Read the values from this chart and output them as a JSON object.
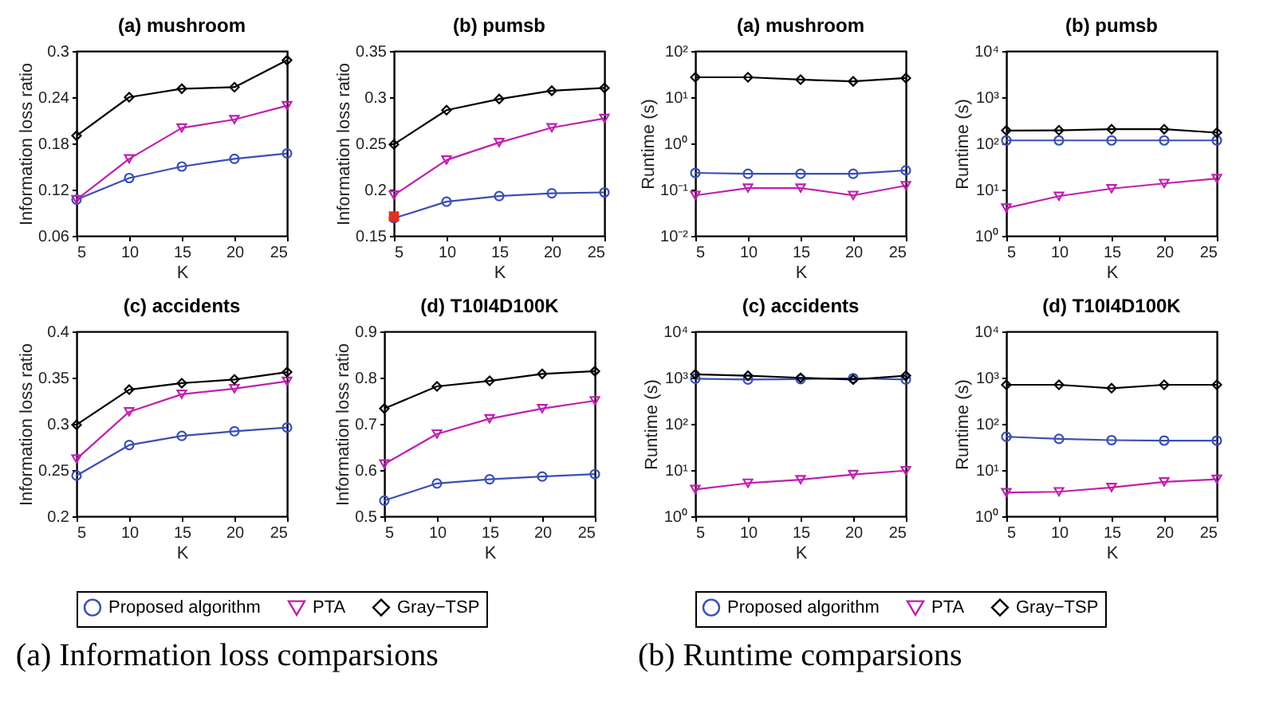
{
  "chart_data": [
    {
      "type": "line",
      "title": "(a) mushroom",
      "xlabel": "K",
      "ylabel": "Information loss ratio",
      "x": [
        5,
        10,
        15,
        20,
        25
      ],
      "xlim": [
        5,
        25
      ],
      "xticks": [
        5,
        10,
        15,
        20,
        25
      ],
      "ylim": [
        0.06,
        0.3
      ],
      "yticks": [
        0.06,
        0.12,
        0.18,
        0.24,
        0.3
      ],
      "legend": "bottom",
      "annotations": [
        "(a) Information loss comparsions"
      ],
      "series": [
        {
          "name": "Proposed algorithm",
          "color": "#3a4fb5",
          "marker": "circle",
          "values": [
            0.107,
            0.135,
            0.15,
            0.16,
            0.167
          ]
        },
        {
          "name": "PTA",
          "color": "#c020b0",
          "marker": "triangle",
          "values": [
            0.107,
            0.16,
            0.2,
            0.211,
            0.229
          ]
        },
        {
          "name": "Gray−TSP",
          "color": "#000000",
          "marker": "diamond",
          "values": [
            0.19,
            0.24,
            0.251,
            0.253,
            0.288
          ]
        }
      ]
    },
    {
      "type": "line",
      "title": "(b) pumsb",
      "xlabel": "K",
      "ylabel": "Information loss ratio",
      "x": [
        5,
        10,
        15,
        20,
        25
      ],
      "xlim": [
        5,
        25
      ],
      "xticks": [
        5,
        10,
        15,
        20,
        25
      ],
      "ylim": [
        0.15,
        0.35
      ],
      "yticks": [
        0.15,
        0.2,
        0.25,
        0.3,
        0.35
      ],
      "legend": "bottom",
      "series": [
        {
          "name": "Proposed algorithm",
          "color": "#3a4fb5",
          "marker": "circle",
          "values": [
            0.169,
            0.187,
            0.193,
            0.196,
            0.197
          ]
        },
        {
          "name": "PTA",
          "color": "#c020b0",
          "marker": "triangle",
          "values": [
            0.194,
            0.232,
            0.251,
            0.267,
            0.277
          ]
        },
        {
          "name": "Gray−TSP",
          "color": "#000000",
          "marker": "diamond",
          "values": [
            0.249,
            0.286,
            0.298,
            0.307,
            0.31
          ]
        },
        {
          "type": "scatter",
          "color": "#e03020",
          "marker": "square",
          "x": [
            5
          ],
          "values": [
            0.171
          ]
        }
      ]
    },
    {
      "type": "line",
      "title": "(c) accidents",
      "xlabel": "K",
      "ylabel": "Information loss ratio",
      "x": [
        5,
        10,
        15,
        20,
        25
      ],
      "xlim": [
        5,
        25
      ],
      "xticks": [
        5,
        10,
        15,
        20,
        25
      ],
      "ylim": [
        0.2,
        0.4
      ],
      "yticks": [
        0.2,
        0.25,
        0.3,
        0.35,
        0.4
      ],
      "legend": "bottom",
      "series": [
        {
          "name": "Proposed algorithm",
          "color": "#3a4fb5",
          "marker": "circle",
          "values": [
            0.244,
            0.277,
            0.287,
            0.292,
            0.296
          ]
        },
        {
          "name": "PTA",
          "color": "#c020b0",
          "marker": "triangle",
          "values": [
            0.262,
            0.313,
            0.332,
            0.338,
            0.346
          ]
        },
        {
          "name": "Gray−TSP",
          "color": "#000000",
          "marker": "diamond",
          "values": [
            0.299,
            0.337,
            0.344,
            0.348,
            0.356
          ]
        }
      ]
    },
    {
      "type": "line",
      "title": "(d) T10I4D100K",
      "xlabel": "K",
      "ylabel": "Information loss ratio",
      "x": [
        5,
        10,
        15,
        20,
        25
      ],
      "xlim": [
        5,
        25
      ],
      "xticks": [
        5,
        10,
        15,
        20,
        25
      ],
      "ylim": [
        0.5,
        0.9
      ],
      "yticks": [
        0.5,
        0.6,
        0.7,
        0.8,
        0.9
      ],
      "legend": "bottom",
      "series": [
        {
          "name": "Proposed algorithm",
          "color": "#3a4fb5",
          "marker": "circle",
          "values": [
            0.534,
            0.571,
            0.58,
            0.586,
            0.591
          ]
        },
        {
          "name": "PTA",
          "color": "#c020b0",
          "marker": "triangle",
          "values": [
            0.613,
            0.678,
            0.711,
            0.733,
            0.75
          ]
        },
        {
          "name": "Gray−TSP",
          "color": "#000000",
          "marker": "diamond",
          "values": [
            0.733,
            0.781,
            0.793,
            0.808,
            0.814
          ]
        }
      ]
    },
    {
      "type": "line",
      "title": "(a) mushroom",
      "xlabel": "K",
      "ylabel": "Runtime (s)",
      "log": "y",
      "x": [
        5,
        10,
        15,
        20,
        25
      ],
      "xlim": [
        5,
        25
      ],
      "xticks": [
        5,
        10,
        15,
        20,
        25
      ],
      "ylim": [
        0.01,
        100
      ],
      "yticks": [
        {
          "value": 0.01,
          "label": "10⁻²"
        },
        {
          "value": 0.1,
          "label": "10⁻¹"
        },
        {
          "value": 1,
          "label": "10⁰"
        },
        {
          "value": 10,
          "label": "10¹"
        },
        {
          "value": 100,
          "label": "10²"
        }
      ],
      "legend": "bottom",
      "annotations": [
        "(b) Runtime comparsions"
      ],
      "series": [
        {
          "name": "Proposed algorithm",
          "color": "#3a4fb5",
          "marker": "circle",
          "values": [
            0.23,
            0.22,
            0.22,
            0.22,
            0.26
          ]
        },
        {
          "name": "PTA",
          "color": "#c020b0",
          "marker": "triangle",
          "values": [
            0.075,
            0.108,
            0.108,
            0.075,
            0.122
          ]
        },
        {
          "name": "Gray−TSP",
          "color": "#000000",
          "marker": "diamond",
          "values": [
            27,
            27,
            24,
            22,
            26
          ]
        }
      ]
    },
    {
      "type": "line",
      "title": "(b) pumsb",
      "xlabel": "K",
      "ylabel": "Runtime (s)",
      "log": "y",
      "x": [
        5,
        10,
        15,
        20,
        25
      ],
      "xlim": [
        5,
        25
      ],
      "xticks": [
        5,
        10,
        15,
        20,
        25
      ],
      "ylim": [
        1,
        10000
      ],
      "yticks": [
        {
          "value": 1,
          "label": "10⁰"
        },
        {
          "value": 10,
          "label": "10¹"
        },
        {
          "value": 100,
          "label": "10²"
        },
        {
          "value": 1000,
          "label": "10³"
        },
        {
          "value": 10000,
          "label": "10⁴"
        }
      ],
      "legend": "bottom",
      "series": [
        {
          "name": "Proposed algorithm",
          "color": "#3a4fb5",
          "marker": "circle",
          "values": [
            116,
            116,
            116,
            116,
            116
          ]
        },
        {
          "name": "PTA",
          "color": "#c020b0",
          "marker": "triangle",
          "values": [
            4,
            7.2,
            10.5,
            13.6,
            17.3
          ]
        },
        {
          "name": "Gray−TSP",
          "color": "#000000",
          "marker": "diamond",
          "values": [
            190,
            192,
            203,
            203,
            171
          ]
        }
      ]
    },
    {
      "type": "line",
      "title": "(c) accidents",
      "xlabel": "K",
      "ylabel": "Runtime (s)",
      "log": "y",
      "x": [
        5,
        10,
        15,
        20,
        25
      ],
      "xlim": [
        5,
        25
      ],
      "xticks": [
        5,
        10,
        15,
        20,
        25
      ],
      "ylim": [
        1,
        10000
      ],
      "yticks": [
        {
          "value": 1,
          "label": "10⁰"
        },
        {
          "value": 10,
          "label": "10¹"
        },
        {
          "value": 100,
          "label": "10²"
        },
        {
          "value": 1000,
          "label": "10³"
        },
        {
          "value": 10000,
          "label": "10⁴"
        }
      ],
      "legend": "bottom",
      "series": [
        {
          "name": "Proposed algorithm",
          "color": "#3a4fb5",
          "marker": "circle",
          "values": [
            950,
            910,
            930,
            970,
            910
          ]
        },
        {
          "name": "PTA",
          "color": "#c020b0",
          "marker": "triangle",
          "values": [
            3.8,
            5.2,
            6.2,
            8,
            9.7
          ]
        },
        {
          "name": "Gray−TSP",
          "color": "#000000",
          "marker": "diamond",
          "values": [
            1180,
            1100,
            990,
            910,
            1100
          ]
        }
      ]
    },
    {
      "type": "line",
      "title": "(d) T10I4D100K",
      "xlabel": "K",
      "ylabel": "Runtime (s)",
      "log": "y",
      "x": [
        5,
        10,
        15,
        20,
        25
      ],
      "xlim": [
        5,
        25
      ],
      "xticks": [
        5,
        10,
        15,
        20,
        25
      ],
      "ylim": [
        1,
        10000
      ],
      "yticks": [
        {
          "value": 1,
          "label": "10⁰"
        },
        {
          "value": 10,
          "label": "10¹"
        },
        {
          "value": 100,
          "label": "10²"
        },
        {
          "value": 1000,
          "label": "10³"
        },
        {
          "value": 10000,
          "label": "10⁴"
        }
      ],
      "legend": "bottom",
      "series": [
        {
          "name": "Proposed algorithm",
          "color": "#3a4fb5",
          "marker": "circle",
          "values": [
            52.6,
            47.2,
            44.3,
            43.4,
            43.4
          ]
        },
        {
          "name": "PTA",
          "color": "#c020b0",
          "marker": "triangle",
          "values": [
            3.25,
            3.39,
            4.2,
            5.55,
            6.3
          ]
        },
        {
          "name": "Gray−TSP",
          "color": "#000000",
          "marker": "diamond",
          "values": [
            700,
            700,
            590,
            700,
            700
          ]
        }
      ]
    }
  ]
}
